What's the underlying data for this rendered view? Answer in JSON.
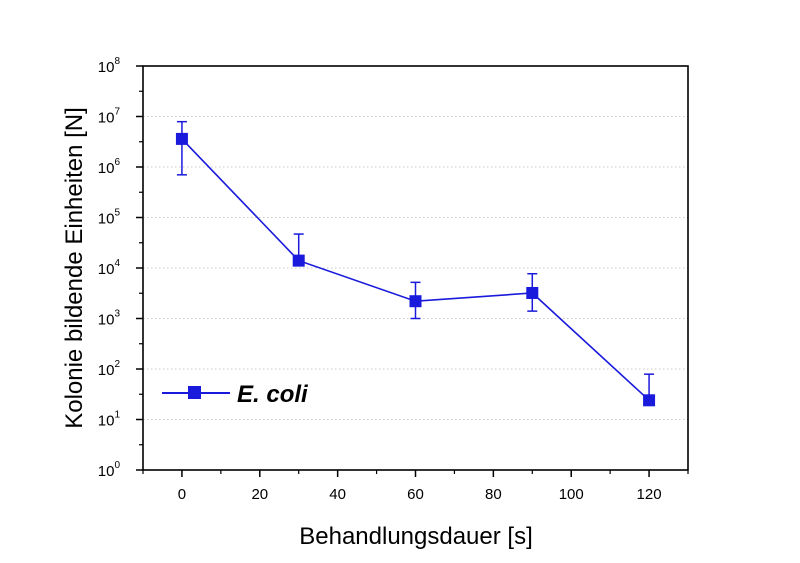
{
  "chart_data": {
    "type": "line",
    "xlabel": "Behandlungsdauer [s]",
    "ylabel": "Kolonie bildende Einheiten [N]",
    "xlim": [
      -10,
      130
    ],
    "ylim": [
      1,
      100000000
    ],
    "y_scale": "log",
    "x_ticks": [
      0,
      20,
      40,
      60,
      80,
      100,
      120
    ],
    "x_tick_labels": [
      "0",
      "20",
      "40",
      "60",
      "80",
      "100",
      "120"
    ],
    "y_tick_base": "10",
    "y_tick_exponents": [
      "0",
      "1",
      "2",
      "3",
      "4",
      "5",
      "6",
      "7",
      "8"
    ],
    "grid": "horizontal dotted",
    "legend_position": "lower-left",
    "series": [
      {
        "name": "E. coli",
        "color": "#1a1adc",
        "marker": "square",
        "x": [
          0,
          30,
          60,
          90,
          120
        ],
        "y": [
          3600000,
          14000,
          2200,
          3200,
          24
        ],
        "error_low": [
          2900000,
          14000,
          1200,
          1800,
          24
        ],
        "error_high": [
          4300000,
          33000,
          3000,
          4500,
          55
        ]
      }
    ]
  }
}
